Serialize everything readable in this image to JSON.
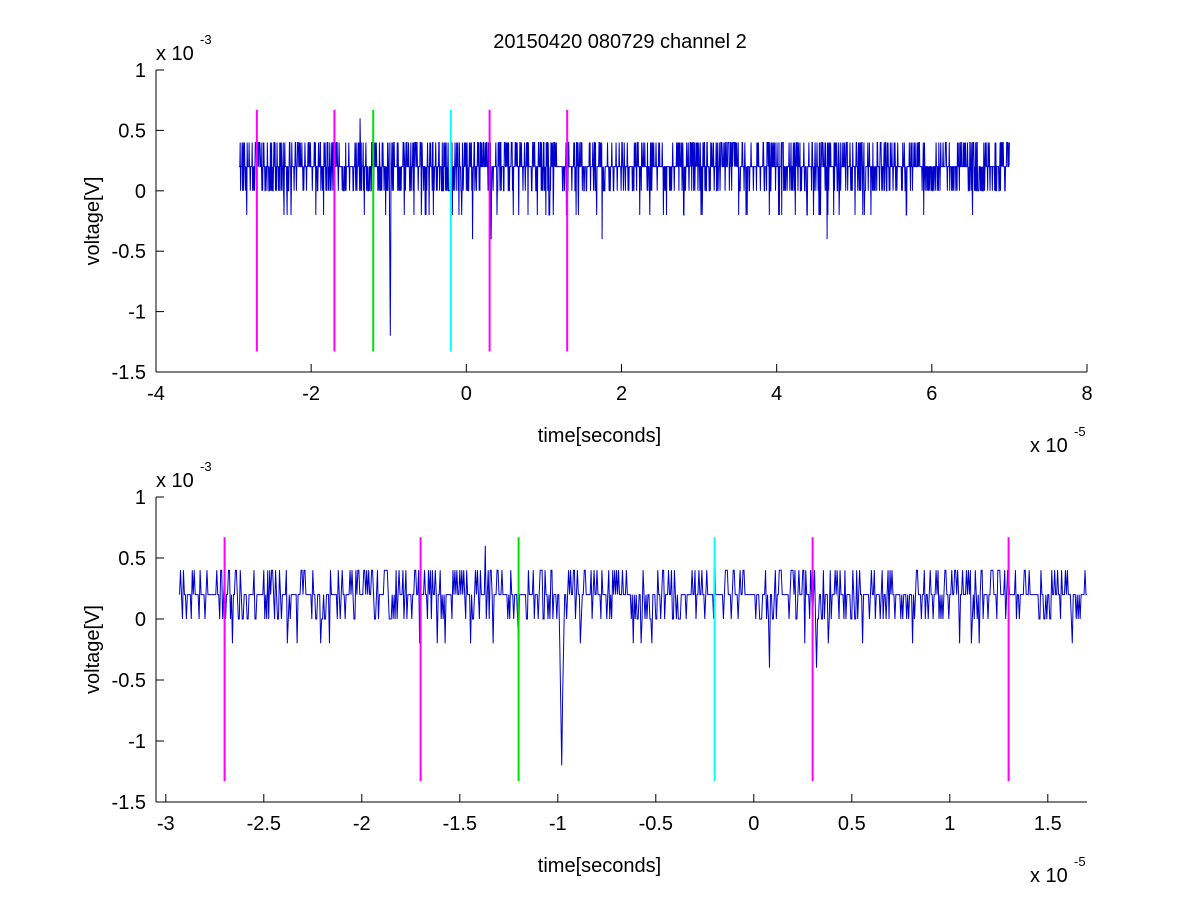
{
  "figure": {
    "title": "20150420 080729 channel 2"
  },
  "colors": {
    "signal": "#0000cc",
    "magenta": "#ff00ff",
    "green": "#00e000",
    "cyan": "#00ffff",
    "axis": "#000000",
    "background": "#ffffff"
  },
  "chart_data": [
    {
      "type": "line",
      "title": "20150420 080729 channel 2",
      "xlabel": "time[seconds]",
      "ylabel": "voltage[V]",
      "x_exponent_label": "x 10",
      "x_exponent_power": "-5",
      "y_exponent_label": "x 10",
      "y_exponent_power": "-3",
      "xlim": [
        -4e-05,
        8e-05
      ],
      "ylim": [
        -0.0015,
        0.001
      ],
      "xticks": [
        -4e-05,
        -2e-05,
        0,
        2e-05,
        4e-05,
        6e-05,
        8e-05
      ],
      "xtick_labels": [
        "-4",
        "-2",
        "0",
        "2",
        "4",
        "6",
        "8"
      ],
      "yticks": [
        -0.0015,
        -0.001,
        -0.0005,
        0,
        0.0005,
        0.001
      ],
      "ytick_labels": [
        "-1.5",
        "-1",
        "-0.5",
        "0",
        "0.5",
        "1"
      ],
      "grid": false,
      "series": [
        {
          "color": "#0000cc",
          "x_range": [
            -2.93e-05,
            7e-05
          ],
          "baseline": 0.0002,
          "quantum": 0.0002,
          "sample_step": 5e-08,
          "events": [
            {
              "x": -9.8e-06,
              "y": -0.0012
            },
            {
              "x": -2e-06,
              "y": 0.0006
            },
            {
              "x": -1.37e-05,
              "y": 0.0006
            },
            {
              "x": 1.75e-05,
              "y": -0.0004
            },
            {
              "x": 4.65e-05,
              "y": -0.0004
            },
            {
              "x": 8e-07,
              "y": -0.0004
            },
            {
              "x": 3.2e-06,
              "y": -0.0004
            }
          ]
        }
      ],
      "markers": [
        {
          "x": -2.7e-05,
          "color": "#ff00ff"
        },
        {
          "x": -1.7e-05,
          "color": "#ff00ff"
        },
        {
          "x": -1.2e-05,
          "color": "#00e000"
        },
        {
          "x": -2e-06,
          "color": "#00ffff"
        },
        {
          "x": 3e-06,
          "color": "#ff00ff"
        },
        {
          "x": 1.3e-05,
          "color": "#ff00ff"
        }
      ],
      "marker_y_range": [
        -0.00133,
        0.00067
      ]
    },
    {
      "type": "line",
      "title": "",
      "xlabel": "time[seconds]",
      "ylabel": "voltage[V]",
      "x_exponent_label": "x 10",
      "x_exponent_power": "-5",
      "y_exponent_label": "x 10",
      "y_exponent_power": "-3",
      "xlim": [
        -3.05e-05,
        1.7e-05
      ],
      "ylim": [
        -0.0015,
        0.001
      ],
      "xticks": [
        -3e-05,
        -2.5e-05,
        -2e-05,
        -1.5e-05,
        -1e-05,
        -5e-06,
        0,
        5e-06,
        1e-05,
        1.5e-05
      ],
      "xtick_labels": [
        "-3",
        "-2.5",
        "-2",
        "-1.5",
        "-1",
        "-0.5",
        "0",
        "0.5",
        "1",
        "1.5"
      ],
      "yticks": [
        -0.0015,
        -0.001,
        -0.0005,
        0,
        0.0005,
        0.001
      ],
      "ytick_labels": [
        "-1.5",
        "-1",
        "-0.5",
        "0",
        "0.5",
        "1"
      ],
      "grid": false,
      "series": [
        {
          "color": "#0000cc",
          "x_range": [
            -2.93e-05,
            1.7e-05
          ],
          "baseline": 0.0002,
          "quantum": 0.0002,
          "sample_step": 5e-08,
          "events": [
            {
              "x": -9.8e-06,
              "y": -0.0012
            },
            {
              "x": -2e-06,
              "y": 0.0006
            },
            {
              "x": -1.37e-05,
              "y": 0.0006
            },
            {
              "x": 8e-07,
              "y": -0.0004
            },
            {
              "x": 3.2e-06,
              "y": -0.0004
            },
            {
              "x": -1.2e-05,
              "y": -0.0002
            }
          ]
        }
      ],
      "markers": [
        {
          "x": -2.7e-05,
          "color": "#ff00ff"
        },
        {
          "x": -1.7e-05,
          "color": "#ff00ff"
        },
        {
          "x": -1.2e-05,
          "color": "#00e000"
        },
        {
          "x": -2e-06,
          "color": "#00ffff"
        },
        {
          "x": 3e-06,
          "color": "#ff00ff"
        },
        {
          "x": 1.3e-05,
          "color": "#ff00ff"
        }
      ],
      "marker_y_range": [
        -0.00133,
        0.00067
      ]
    }
  ]
}
